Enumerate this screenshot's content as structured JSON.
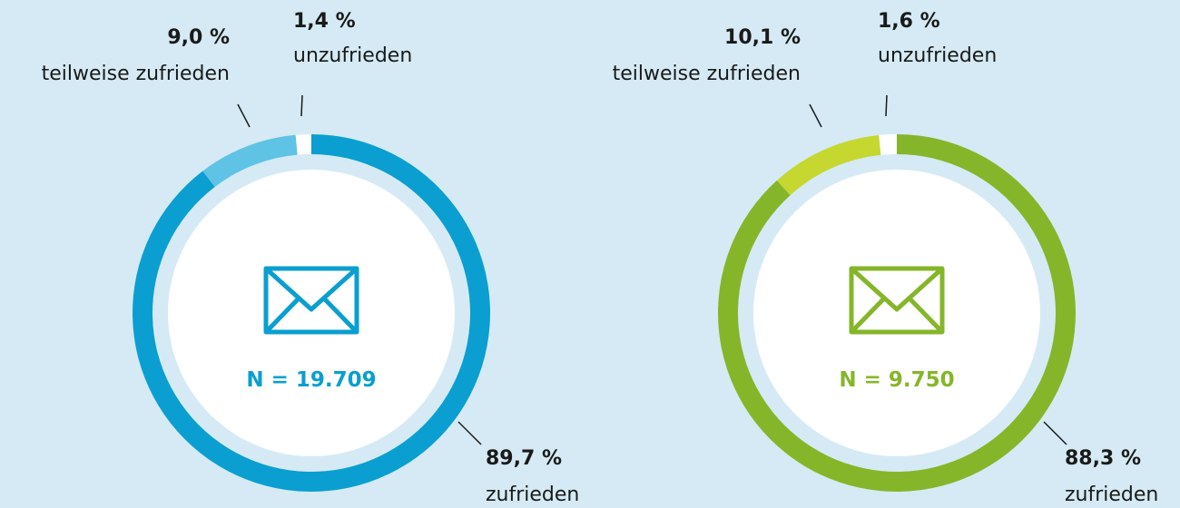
{
  "chart_data": [
    {
      "type": "pie",
      "categories": [
        "zufrieden",
        "teilweise zufrieden",
        "unzufrieden"
      ],
      "values": [
        89.7,
        9.0,
        1.4
      ],
      "value_labels": [
        "89,7 %",
        "9,0 %",
        "1,4 %"
      ],
      "colors": [
        "#0a9fd0",
        "#5ec3e5",
        "#ffffff"
      ],
      "center_text": "N = 19.709"
    },
    {
      "type": "pie",
      "categories": [
        "zufrieden",
        "teilweise zufrieden",
        "unzufrieden"
      ],
      "values": [
        88.3,
        10.1,
        1.6
      ],
      "value_labels": [
        "88,3 %",
        "10,1 %",
        "1,6 %"
      ],
      "colors": [
        "#85b62a",
        "#c6d72f",
        "#ffffff"
      ],
      "center_text": "N = 9.750"
    }
  ]
}
